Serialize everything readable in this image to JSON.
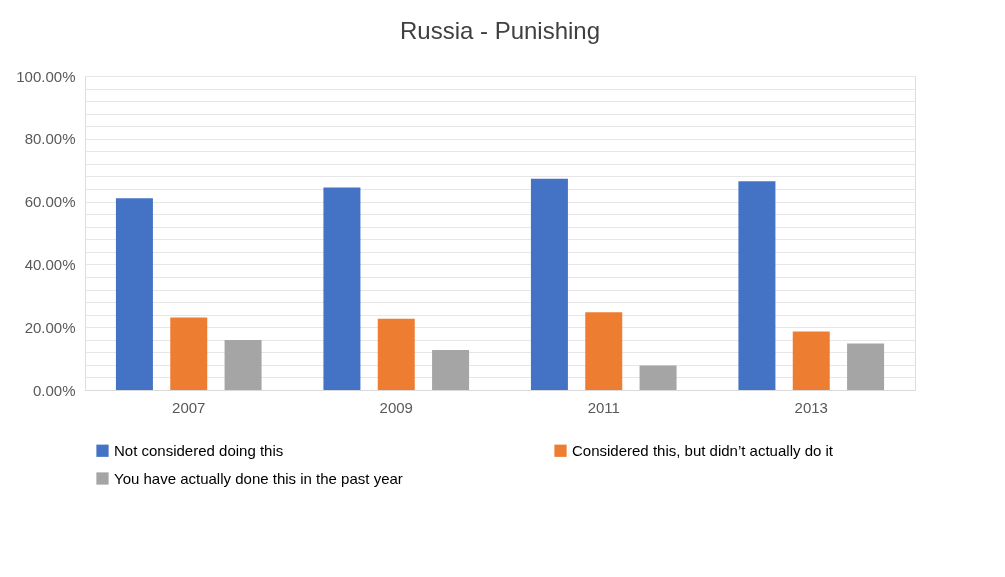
{
  "chart_data": {
    "type": "bar",
    "title": "Russia - Punishing",
    "categories": [
      "2007",
      "2009",
      "2011",
      "2013"
    ],
    "series": [
      {
        "name": "Not considered doing this",
        "color": "#4472c4",
        "values": [
          61.1,
          64.5,
          67.3,
          66.5
        ]
      },
      {
        "name": "Considered this, but didn’t actually do it",
        "color": "#ed7d31",
        "values": [
          23.1,
          22.7,
          24.8,
          18.6
        ]
      },
      {
        "name": "You have actually done this in the past year",
        "color": "#a5a5a5",
        "values": [
          15.9,
          12.7,
          7.8,
          14.8
        ]
      }
    ],
    "ylim": [
      0,
      100
    ],
    "yticks": [
      {
        "value": 0,
        "label": "0.00%"
      },
      {
        "value": 4,
        "label": null
      },
      {
        "value": 8,
        "label": null
      },
      {
        "value": 12,
        "label": null
      },
      {
        "value": 16,
        "label": null
      },
      {
        "value": 20,
        "label": "20.00%"
      },
      {
        "value": 24,
        "label": null
      },
      {
        "value": 28,
        "label": null
      },
      {
        "value": 32,
        "label": null
      },
      {
        "value": 36,
        "label": null
      },
      {
        "value": 40,
        "label": "40.00%"
      },
      {
        "value": 44,
        "label": null
      },
      {
        "value": 48,
        "label": null
      },
      {
        "value": 52,
        "label": null
      },
      {
        "value": 56,
        "label": null
      },
      {
        "value": 60,
        "label": "60.00%"
      },
      {
        "value": 64,
        "label": null
      },
      {
        "value": 68,
        "label": null
      },
      {
        "value": 72,
        "label": null
      },
      {
        "value": 76,
        "label": null
      },
      {
        "value": 80,
        "label": "80.00%"
      },
      {
        "value": 84,
        "label": null
      },
      {
        "value": 88,
        "label": null
      },
      {
        "value": 92,
        "label": null
      },
      {
        "value": 96,
        "label": null
      },
      {
        "value": 100,
        "label": "100.00%"
      }
    ],
    "grid": true,
    "legend": "bottom"
  }
}
